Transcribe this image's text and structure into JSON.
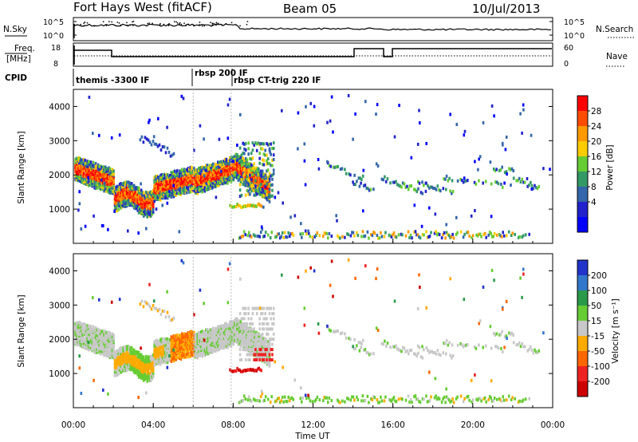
{
  "header": {
    "radar": "Fort Hays West (fitACF)",
    "beam": "Beam 05",
    "date": "10/Jul/2013"
  },
  "summary": {
    "nsky_label": "N.Sky",
    "nsearch_label": "N.Search",
    "freq_label_1": "Freq.",
    "freq_label_2": "[MHz]",
    "nave_label": "Nave",
    "cpid_label": "CPID",
    "log_ticks": [
      "10^5",
      "10^0"
    ],
    "freq_ticks": [
      "18",
      "8"
    ],
    "nave_ticks": [
      "60",
      "0"
    ],
    "cpid_programs": [
      {
        "label": "themis -3300 IF",
        "start_hr": 0.0
      },
      {
        "label": "rbsp 200 IF",
        "start_hr": 6.0
      },
      {
        "label": "rbsp CT-trig 220 IF",
        "start_hr": 7.9
      }
    ]
  },
  "chart_data": [
    {
      "type": "heatmap",
      "name": "power",
      "ylabel": "Slant Range [km]",
      "xlabel": "",
      "ylim": [
        0,
        4500
      ],
      "xlim_hr": [
        0,
        24
      ],
      "yticks": [
        1000,
        2000,
        3000,
        4000
      ],
      "colorbar": {
        "label": "Power [dB]",
        "ticks": [
          "28",
          "24",
          "20",
          "16",
          "12",
          "8",
          "4"
        ],
        "colors": [
          "#ff0000",
          "#ff4d00",
          "#ff9900",
          "#ffcc00",
          "#66cc33",
          "#339966",
          "#3366aa",
          "#2222cc",
          "#0000ff"
        ]
      }
    },
    {
      "type": "heatmap",
      "name": "velocity",
      "ylabel": "Slant Range [km]",
      "xlabel": "Time UT",
      "ylim": [
        0,
        4500
      ],
      "xlim_hr": [
        0,
        24
      ],
      "yticks": [
        1000,
        2000,
        3000,
        4000
      ],
      "xticks": [
        "00:00",
        "04:00",
        "08:00",
        "12:00",
        "16:00",
        "20:00",
        "00:00"
      ],
      "colorbar": {
        "label": "Velocity [m s⁻¹]",
        "ticks": [
          "200",
          "100",
          "50",
          "15",
          "-15",
          "-50",
          "-100",
          "-200"
        ],
        "colors": [
          "#2233cc",
          "#3377cc",
          "#2a9a4a",
          "#66cc33",
          "#c8c8c8",
          "#ffaa00",
          "#ff6600",
          "#ee2222",
          "#cc0000"
        ]
      }
    }
  ]
}
